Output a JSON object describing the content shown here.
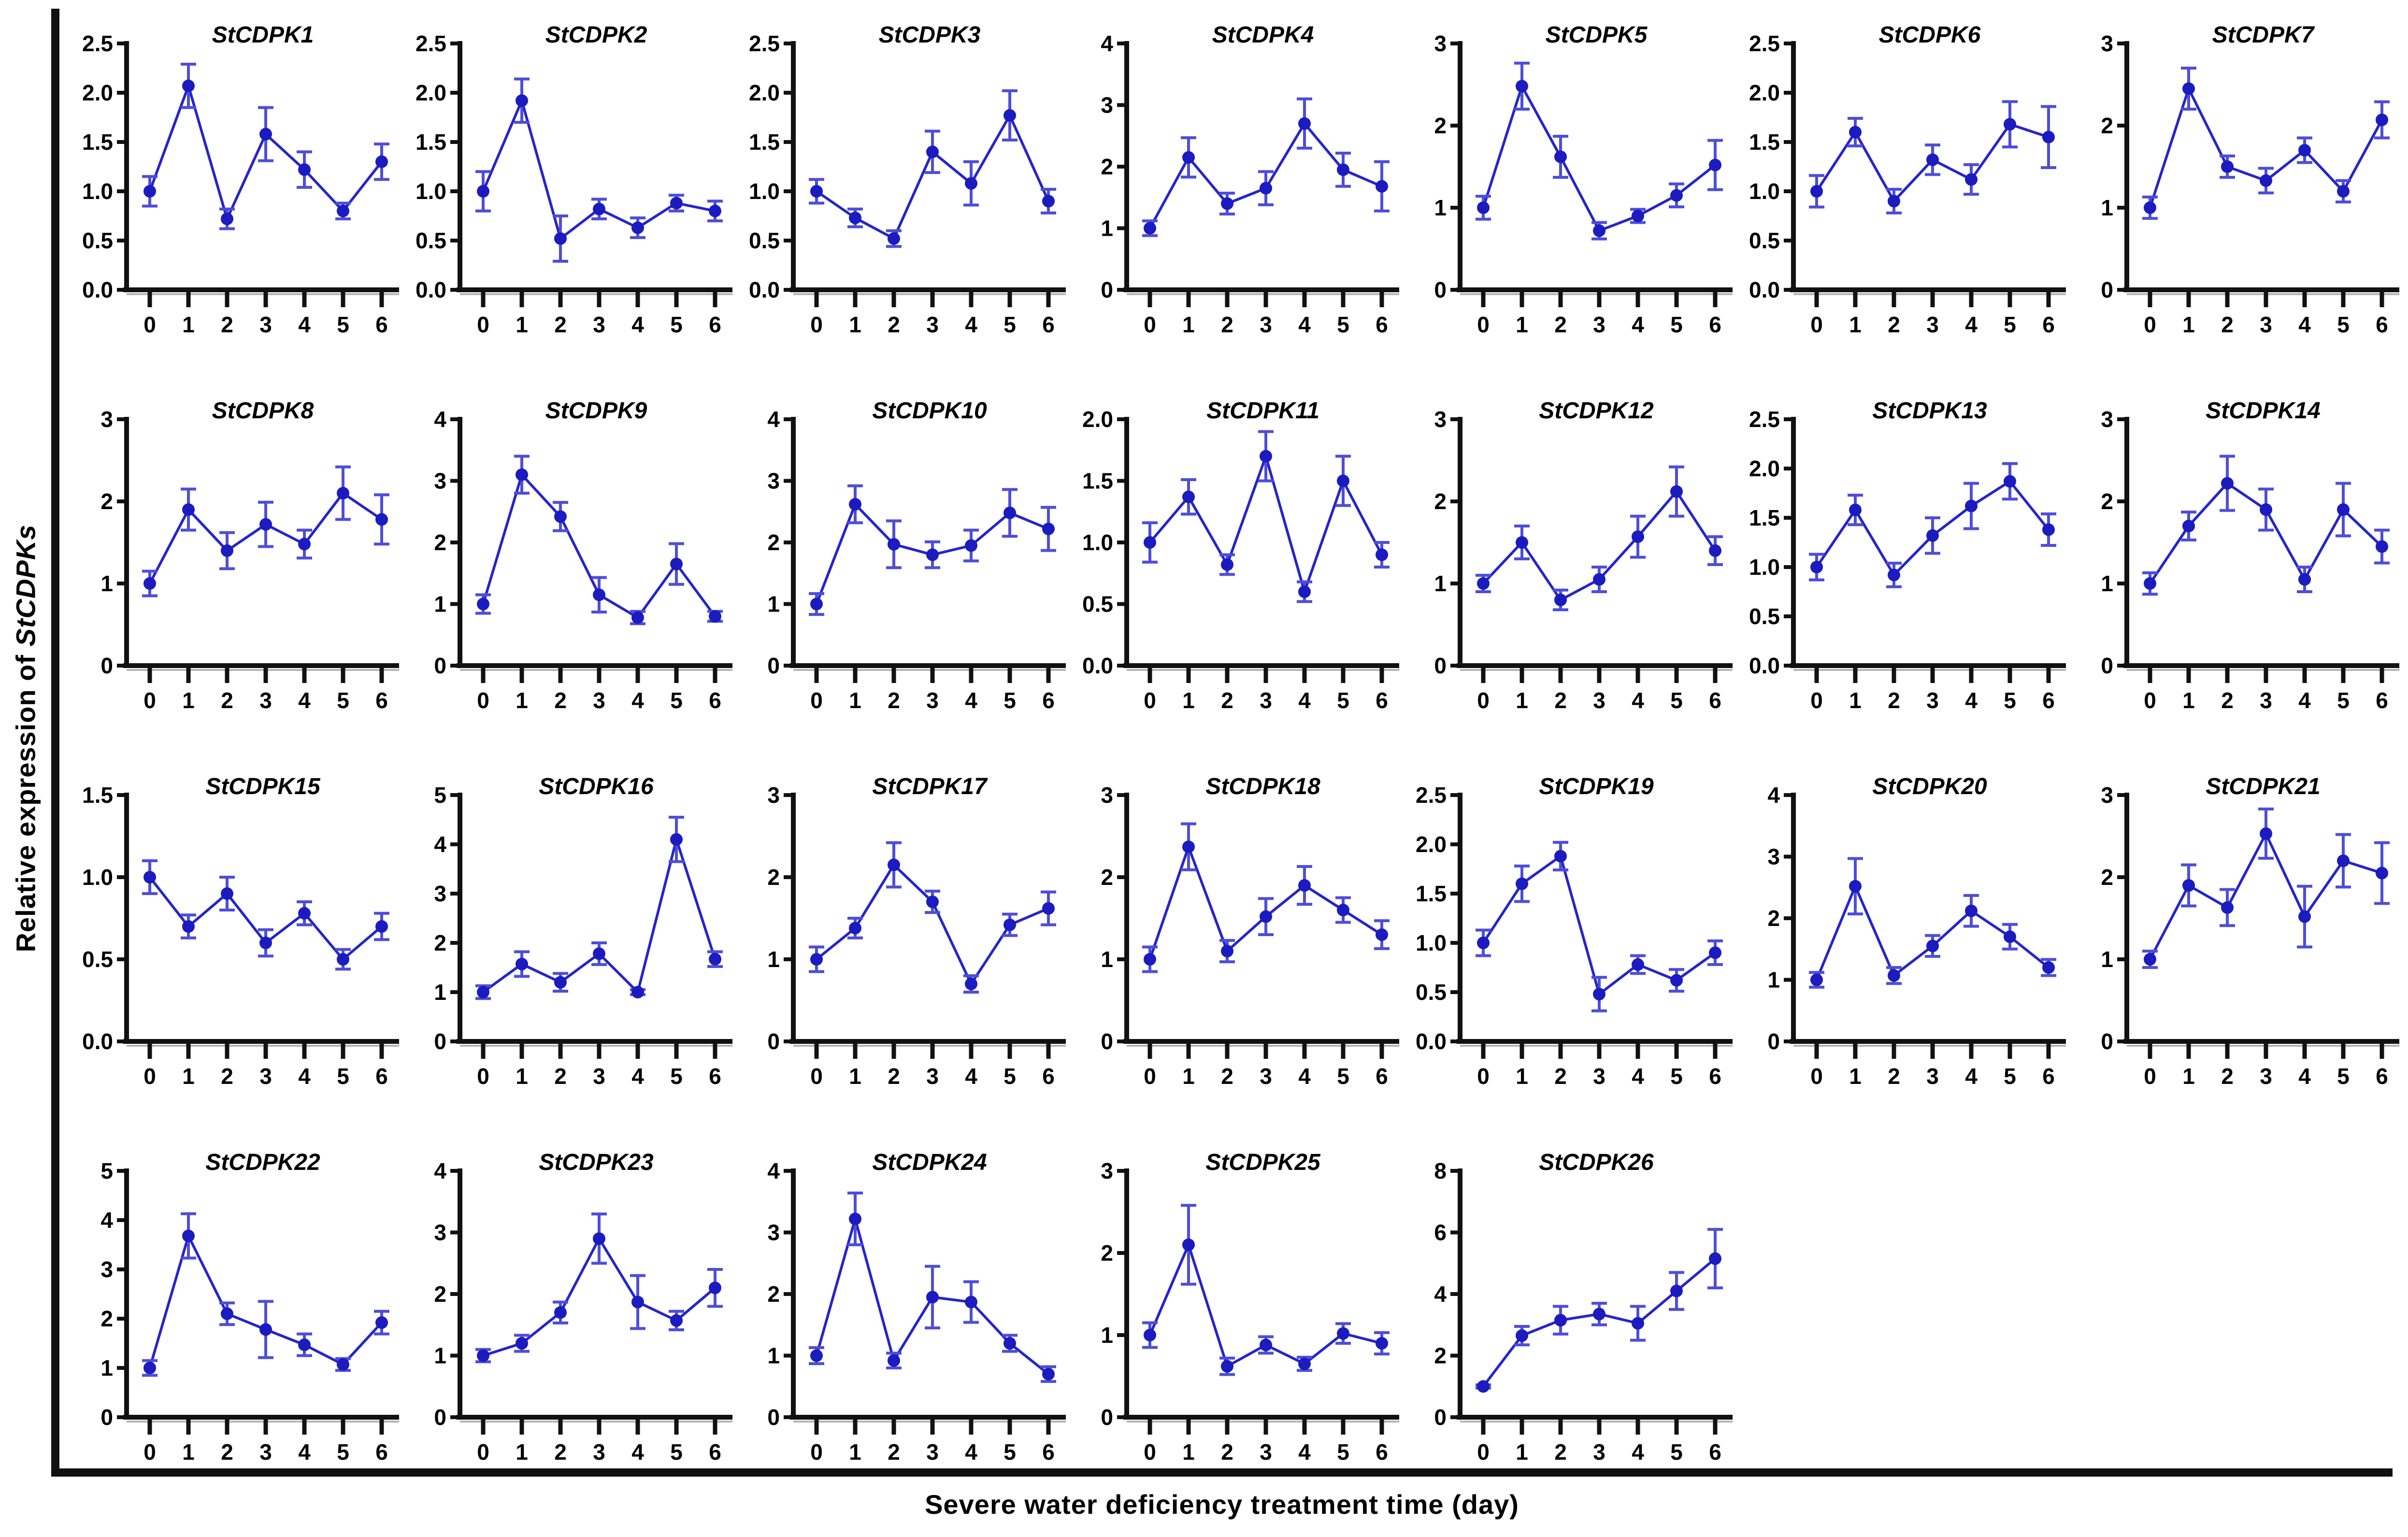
{
  "figure": {
    "xlabel": "Severe water deficiency treatment time (day)",
    "ylabel_main": "Relative expression of ",
    "ylabel_gene": "StCDPKs"
  },
  "colors": {
    "line": "#2424cc",
    "marker": "#1b1bc0",
    "error_bar": "#4d4dda",
    "axis": "#111111",
    "axis_shadow": "#b3b3b3",
    "text": "#000000"
  },
  "chart_data": {
    "type": "line",
    "grid": {
      "rows": 4,
      "cols": 7
    },
    "x": [
      0,
      1,
      2,
      3,
      4,
      5,
      6
    ],
    "xtick_labels": [
      "0",
      "1",
      "2",
      "3",
      "4",
      "5",
      "6"
    ],
    "xlabel": "Severe water deficiency treatment time (day)",
    "ylabel": "Relative expression of StCDPKs",
    "error_bars": true,
    "legend": "none",
    "subplots": [
      {
        "title": "StCDPK1",
        "ylim": [
          0,
          2.5
        ],
        "ytick_labels": [
          "0.0",
          "0.5",
          "1.0",
          "1.5",
          "2.0",
          "2.5"
        ],
        "values": [
          1.0,
          2.07,
          0.72,
          1.58,
          1.22,
          0.8,
          1.3
        ],
        "errors": [
          0.15,
          0.22,
          0.1,
          0.27,
          0.18,
          0.08,
          0.18
        ]
      },
      {
        "title": "StCDPK2",
        "ylim": [
          0,
          2.5
        ],
        "ytick_labels": [
          "0.0",
          "0.5",
          "1.0",
          "1.5",
          "2.0",
          "2.5"
        ],
        "values": [
          1.0,
          1.92,
          0.52,
          0.82,
          0.63,
          0.88,
          0.8
        ],
        "errors": [
          0.2,
          0.22,
          0.23,
          0.1,
          0.1,
          0.08,
          0.1
        ]
      },
      {
        "title": "StCDPK3",
        "ylim": [
          0,
          2.5
        ],
        "ytick_labels": [
          "0.0",
          "0.5",
          "1.0",
          "1.5",
          "2.0",
          "2.5"
        ],
        "values": [
          1.0,
          0.73,
          0.52,
          1.4,
          1.08,
          1.77,
          0.9
        ],
        "errors": [
          0.12,
          0.09,
          0.08,
          0.21,
          0.22,
          0.25,
          0.12
        ]
      },
      {
        "title": "StCDPK4",
        "ylim": [
          0,
          4
        ],
        "ytick_labels": [
          "0",
          "1",
          "2",
          "3",
          "4"
        ],
        "values": [
          1.0,
          2.15,
          1.4,
          1.65,
          2.7,
          1.95,
          1.68
        ],
        "errors": [
          0.12,
          0.32,
          0.17,
          0.27,
          0.4,
          0.27,
          0.4
        ]
      },
      {
        "title": "StCDPK5",
        "ylim": [
          0,
          3
        ],
        "ytick_labels": [
          "0",
          "1",
          "2",
          "3"
        ],
        "values": [
          1.0,
          2.48,
          1.62,
          0.72,
          0.9,
          1.15,
          1.52
        ],
        "errors": [
          0.14,
          0.28,
          0.25,
          0.1,
          0.08,
          0.14,
          0.3
        ]
      },
      {
        "title": "StCDPK6",
        "ylim": [
          0,
          2.5
        ],
        "ytick_labels": [
          "0.0",
          "0.5",
          "1.0",
          "1.5",
          "2.0",
          "2.5"
        ],
        "values": [
          1.0,
          1.6,
          0.9,
          1.32,
          1.12,
          1.68,
          1.55
        ],
        "errors": [
          0.16,
          0.14,
          0.12,
          0.15,
          0.15,
          0.23,
          0.31
        ]
      },
      {
        "title": "StCDPK7",
        "ylim": [
          0,
          3
        ],
        "ytick_labels": [
          "0",
          "1",
          "2",
          "3"
        ],
        "values": [
          1.0,
          2.45,
          1.5,
          1.33,
          1.7,
          1.2,
          2.07
        ],
        "errors": [
          0.13,
          0.25,
          0.13,
          0.15,
          0.15,
          0.13,
          0.22
        ]
      },
      {
        "title": "StCDPK8",
        "ylim": [
          0,
          3
        ],
        "ytick_labels": [
          "0",
          "1",
          "2",
          "3"
        ],
        "values": [
          1.0,
          1.9,
          1.4,
          1.72,
          1.48,
          2.1,
          1.78
        ],
        "errors": [
          0.15,
          0.25,
          0.22,
          0.27,
          0.17,
          0.32,
          0.3
        ]
      },
      {
        "title": "StCDPK9",
        "ylim": [
          0,
          4
        ],
        "ytick_labels": [
          "0",
          "1",
          "2",
          "3",
          "4"
        ],
        "values": [
          1.0,
          3.1,
          2.42,
          1.15,
          0.78,
          1.65,
          0.8
        ],
        "errors": [
          0.15,
          0.3,
          0.23,
          0.28,
          0.1,
          0.33,
          0.08
        ]
      },
      {
        "title": "StCDPK10",
        "ylim": [
          0,
          4
        ],
        "ytick_labels": [
          "0",
          "1",
          "2",
          "3",
          "4"
        ],
        "values": [
          1.0,
          2.62,
          1.97,
          1.8,
          1.95,
          2.48,
          2.22
        ],
        "errors": [
          0.17,
          0.3,
          0.38,
          0.21,
          0.25,
          0.38,
          0.35
        ]
      },
      {
        "title": "StCDPK11",
        "ylim": [
          0,
          2
        ],
        "ytick_labels": [
          "0.0",
          "0.5",
          "1.0",
          "1.5",
          "2.0"
        ],
        "values": [
          1.0,
          1.37,
          0.82,
          1.7,
          0.6,
          1.5,
          0.9
        ],
        "errors": [
          0.16,
          0.14,
          0.08,
          0.2,
          0.08,
          0.2,
          0.1
        ]
      },
      {
        "title": "StCDPK12",
        "ylim": [
          0,
          3
        ],
        "ytick_labels": [
          "0",
          "1",
          "2",
          "3"
        ],
        "values": [
          1.0,
          1.5,
          0.8,
          1.05,
          1.57,
          2.12,
          1.4
        ],
        "errors": [
          0.1,
          0.2,
          0.12,
          0.15,
          0.25,
          0.3,
          0.17
        ]
      },
      {
        "title": "StCDPK13",
        "ylim": [
          0,
          2.5
        ],
        "ytick_labels": [
          "0.0",
          "0.5",
          "1.0",
          "1.5",
          "2.0",
          "2.5"
        ],
        "values": [
          1.0,
          1.58,
          0.92,
          1.32,
          1.62,
          1.87,
          1.38
        ],
        "errors": [
          0.13,
          0.15,
          0.12,
          0.18,
          0.23,
          0.18,
          0.16
        ]
      },
      {
        "title": "StCDPK14",
        "ylim": [
          0,
          3
        ],
        "ytick_labels": [
          "0",
          "1",
          "2",
          "3"
        ],
        "values": [
          1.0,
          1.7,
          2.22,
          1.9,
          1.05,
          1.9,
          1.45
        ],
        "errors": [
          0.13,
          0.17,
          0.33,
          0.25,
          0.15,
          0.32,
          0.2
        ]
      },
      {
        "title": "StCDPK15",
        "ylim": [
          0,
          1.5
        ],
        "ytick_labels": [
          "0.0",
          "0.5",
          "1.0",
          "1.5"
        ],
        "values": [
          1.0,
          0.7,
          0.9,
          0.6,
          0.78,
          0.5,
          0.7
        ],
        "errors": [
          0.1,
          0.07,
          0.1,
          0.08,
          0.07,
          0.06,
          0.08
        ]
      },
      {
        "title": "StCDPK16",
        "ylim": [
          0,
          5
        ],
        "ytick_labels": [
          "0",
          "1",
          "2",
          "3",
          "4",
          "5"
        ],
        "values": [
          1.0,
          1.57,
          1.2,
          1.78,
          1.0,
          4.1,
          1.67
        ],
        "errors": [
          0.13,
          0.25,
          0.18,
          0.22,
          0.05,
          0.45,
          0.15
        ]
      },
      {
        "title": "StCDPK17",
        "ylim": [
          0,
          3
        ],
        "ytick_labels": [
          "0",
          "1",
          "2",
          "3"
        ],
        "values": [
          1.0,
          1.38,
          2.15,
          1.7,
          0.7,
          1.42,
          1.62
        ],
        "errors": [
          0.15,
          0.12,
          0.27,
          0.13,
          0.1,
          0.13,
          0.2
        ]
      },
      {
        "title": "StCDPK18",
        "ylim": [
          0,
          3
        ],
        "ytick_labels": [
          "0",
          "1",
          "2",
          "3"
        ],
        "values": [
          1.0,
          2.37,
          1.1,
          1.52,
          1.9,
          1.6,
          1.3
        ],
        "errors": [
          0.15,
          0.28,
          0.13,
          0.22,
          0.23,
          0.15,
          0.17
        ]
      },
      {
        "title": "StCDPK19",
        "ylim": [
          0,
          2.5
        ],
        "ytick_labels": [
          "0.0",
          "0.5",
          "1.0",
          "1.5",
          "2.0",
          "2.5"
        ],
        "values": [
          1.0,
          1.6,
          1.88,
          0.48,
          0.78,
          0.62,
          0.9
        ],
        "errors": [
          0.13,
          0.18,
          0.14,
          0.17,
          0.09,
          0.11,
          0.12
        ]
      },
      {
        "title": "StCDPK20",
        "ylim": [
          0,
          4
        ],
        "ytick_labels": [
          "0",
          "1",
          "2",
          "3",
          "4"
        ],
        "values": [
          1.0,
          2.52,
          1.07,
          1.55,
          2.12,
          1.7,
          1.2
        ],
        "errors": [
          0.12,
          0.45,
          0.13,
          0.17,
          0.25,
          0.2,
          0.13
        ]
      },
      {
        "title": "StCDPK21",
        "ylim": [
          0,
          3
        ],
        "ytick_labels": [
          "0",
          "1",
          "2",
          "3"
        ],
        "values": [
          1.0,
          1.9,
          1.63,
          2.53,
          1.52,
          2.2,
          2.05
        ],
        "errors": [
          0.1,
          0.25,
          0.22,
          0.3,
          0.37,
          0.32,
          0.37
        ]
      },
      {
        "title": "StCDPK22",
        "ylim": [
          0,
          5
        ],
        "ytick_labels": [
          "0",
          "1",
          "2",
          "3",
          "4",
          "5"
        ],
        "values": [
          1.0,
          3.68,
          2.1,
          1.78,
          1.47,
          1.07,
          1.92
        ],
        "errors": [
          0.15,
          0.45,
          0.22,
          0.57,
          0.22,
          0.12,
          0.23
        ]
      },
      {
        "title": "StCDPK23",
        "ylim": [
          0,
          4
        ],
        "ytick_labels": [
          "0",
          "1",
          "2",
          "3",
          "4"
        ],
        "values": [
          1.0,
          1.2,
          1.7,
          2.9,
          1.87,
          1.57,
          2.1
        ],
        "errors": [
          0.1,
          0.13,
          0.17,
          0.4,
          0.43,
          0.15,
          0.3
        ]
      },
      {
        "title": "StCDPK24",
        "ylim": [
          0,
          4
        ],
        "ytick_labels": [
          "0",
          "1",
          "2",
          "3",
          "4"
        ],
        "values": [
          1.0,
          3.22,
          0.92,
          1.95,
          1.87,
          1.2,
          0.7
        ],
        "errors": [
          0.13,
          0.42,
          0.12,
          0.5,
          0.33,
          0.13,
          0.12
        ]
      },
      {
        "title": "StCDPK25",
        "ylim": [
          0,
          3
        ],
        "ytick_labels": [
          "0",
          "1",
          "2",
          "3"
        ],
        "values": [
          1.0,
          2.1,
          0.62,
          0.88,
          0.65,
          1.02,
          0.9
        ],
        "errors": [
          0.15,
          0.48,
          0.1,
          0.1,
          0.08,
          0.12,
          0.13
        ]
      },
      {
        "title": "StCDPK26",
        "ylim": [
          0,
          8
        ],
        "ytick_labels": [
          "0",
          "2",
          "4",
          "6",
          "8"
        ],
        "values": [
          1.0,
          2.65,
          3.15,
          3.35,
          3.05,
          4.1,
          5.15
        ],
        "errors": [
          0.05,
          0.3,
          0.45,
          0.35,
          0.55,
          0.6,
          0.95
        ]
      }
    ]
  }
}
